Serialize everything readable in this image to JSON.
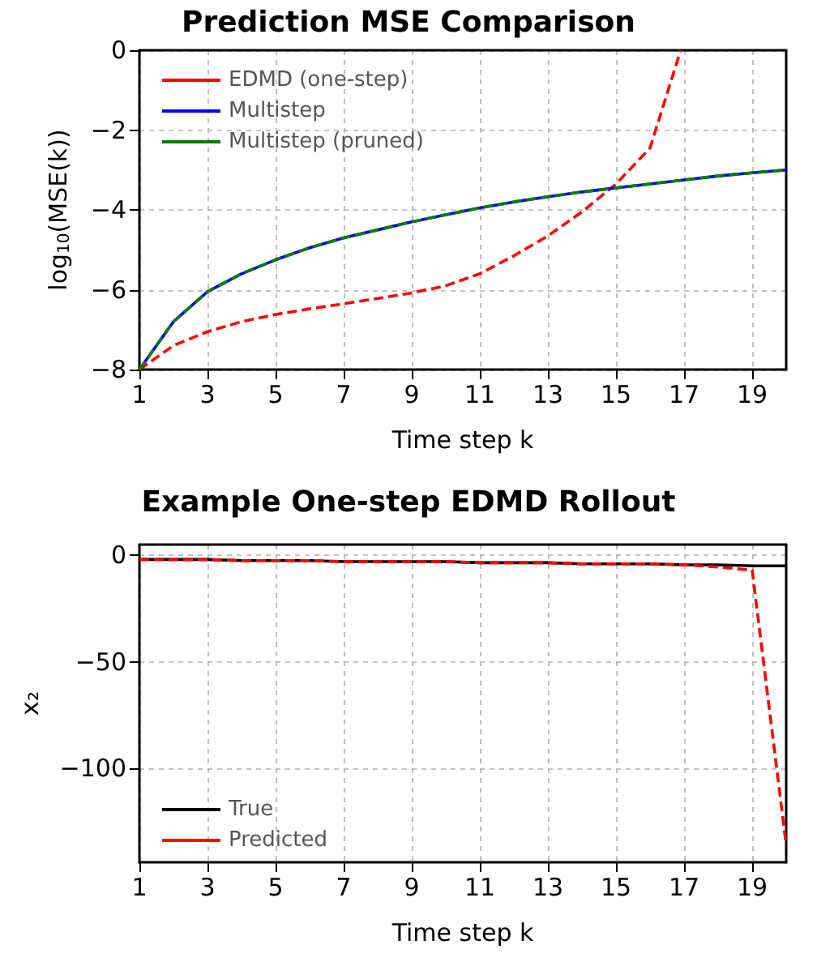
{
  "chart_data": [
    {
      "type": "line",
      "title": "Prediction MSE Comparison",
      "xlabel": "Time step k",
      "ylabel": "log$_{10}$(MSE(k))",
      "x": [
        1,
        2,
        3,
        4,
        5,
        6,
        7,
        8,
        9,
        10,
        11,
        12,
        13,
        14,
        15,
        16,
        17,
        18,
        19,
        20
      ],
      "series": [
        {
          "name": "EDMD (one-step)",
          "color": "#ff0000",
          "line_style": "dashed",
          "x": [
            1,
            2,
            3,
            4,
            5,
            6,
            7,
            8,
            9,
            10,
            11,
            12,
            13,
            14,
            15,
            16,
            16.9
          ],
          "values": [
            -8,
            -7.4,
            -7.05,
            -6.8,
            -6.62,
            -6.48,
            -6.35,
            -6.22,
            -6.08,
            -5.9,
            -5.6,
            -5.15,
            -4.65,
            -4.05,
            -3.35,
            -2.45,
            0
          ]
        },
        {
          "name": "Multistep",
          "color": "#0000ff",
          "line_style": "solid",
          "values": [
            -8,
            -6.8,
            -6.05,
            -5.6,
            -5.25,
            -4.95,
            -4.7,
            -4.5,
            -4.3,
            -4.12,
            -3.95,
            -3.8,
            -3.67,
            -3.55,
            -3.45,
            -3.35,
            -3.25,
            -3.15,
            -3.07,
            -3.0
          ]
        },
        {
          "name": "Multistep (pruned)",
          "color": "#008000",
          "line_style": "dashed",
          "values": [
            -8,
            -6.8,
            -6.05,
            -5.6,
            -5.25,
            -4.95,
            -4.7,
            -4.5,
            -4.3,
            -4.12,
            -3.95,
            -3.8,
            -3.67,
            -3.55,
            -3.45,
            -3.35,
            -3.25,
            -3.15,
            -3.07,
            -3.0
          ]
        }
      ],
      "xlim": [
        1,
        20
      ],
      "xticks": [
        1,
        3,
        5,
        7,
        9,
        11,
        13,
        15,
        17,
        19
      ],
      "ylim": [
        -8,
        0
      ],
      "yticks": [
        -8,
        -6,
        -4,
        -2,
        0
      ],
      "grid": true,
      "legend": "top left",
      "marker": "none"
    },
    {
      "type": "line",
      "title": "Example One-step EDMD Rollout",
      "xlabel": "Time step k",
      "ylabel": "x₂",
      "x": [
        1,
        2,
        3,
        4,
        5,
        6,
        7,
        8,
        9,
        10,
        11,
        12,
        13,
        14,
        15,
        16,
        17,
        18,
        19,
        20
      ],
      "series": [
        {
          "name": "True",
          "color": "#000000",
          "line_style": "solid",
          "values": [
            -2,
            -2,
            -2,
            -2.5,
            -2.5,
            -2.5,
            -3,
            -3,
            -3,
            -3,
            -3.5,
            -3.5,
            -3.5,
            -4,
            -4,
            -4,
            -4.5,
            -4.5,
            -5,
            -5
          ]
        },
        {
          "name": "Predicted",
          "color": "#ff0000",
          "line_style": "dashed",
          "values": [
            -2,
            -2,
            -2,
            -2.5,
            -2.5,
            -2.5,
            -3,
            -3,
            -3,
            -3,
            -3.5,
            -3.5,
            -3.5,
            -4,
            -4,
            -4,
            -4.5,
            -5.5,
            -7,
            -136
          ]
        }
      ],
      "xlim": [
        1,
        20
      ],
      "xticks": [
        1,
        3,
        5,
        7,
        9,
        11,
        13,
        15,
        17,
        19
      ],
      "ylim": [
        -144,
        5
      ],
      "yticks": [
        -100,
        -50,
        0
      ],
      "grid": true,
      "legend": "bottom left",
      "marker": "none"
    }
  ]
}
